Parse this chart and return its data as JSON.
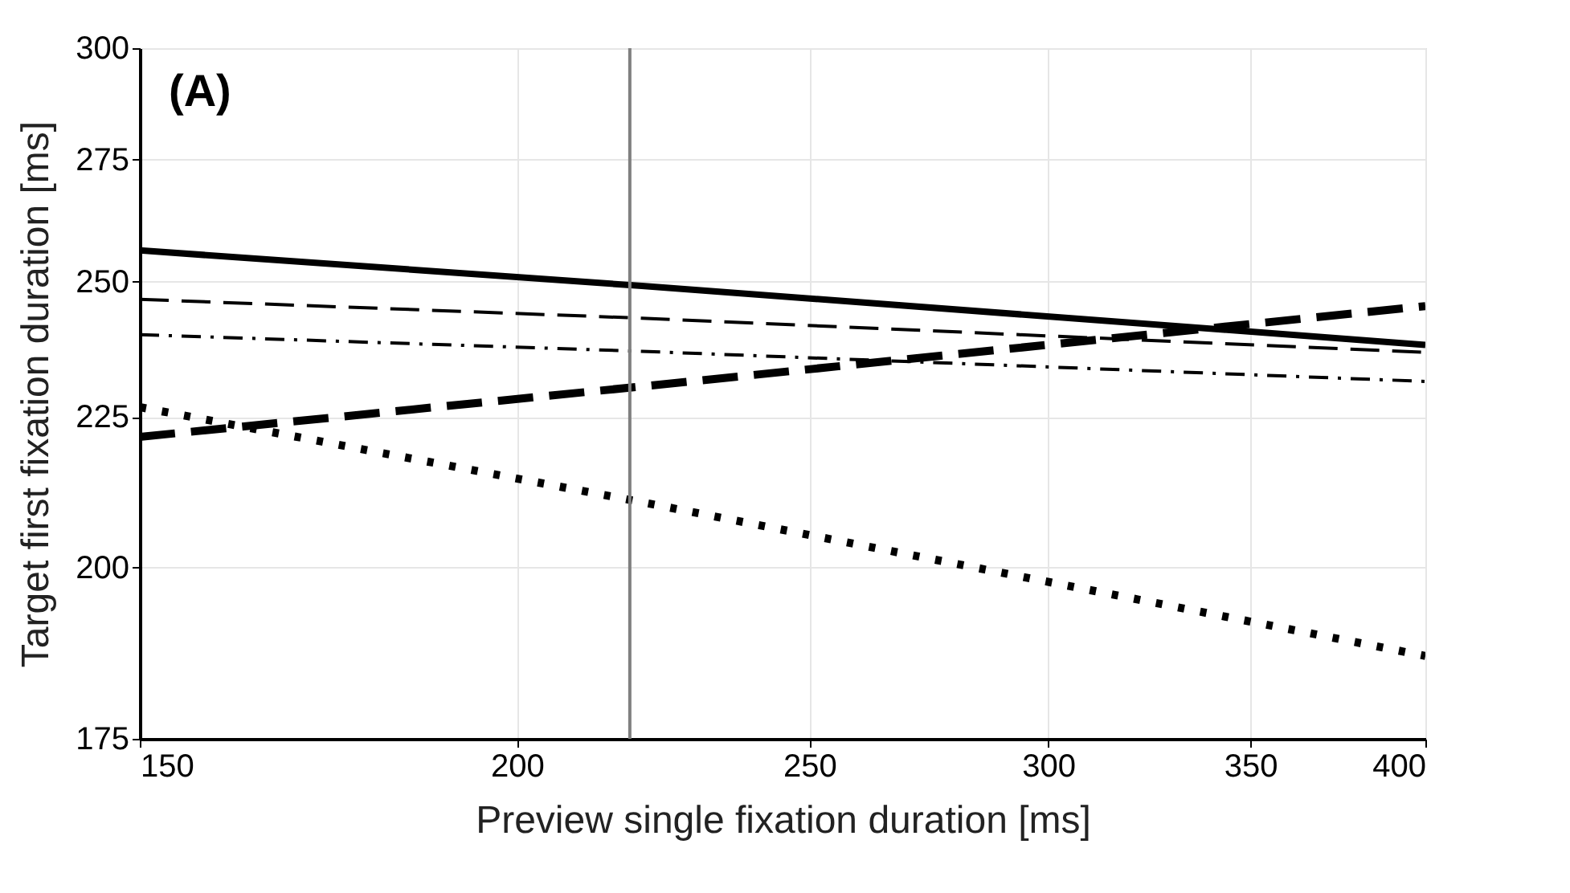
{
  "chart_data": {
    "type": "line",
    "xlabel": "Preview single fixation duration [ms]",
    "ylabel": "Target first fixation duration [ms]",
    "log": "xy",
    "xlim": [
      150,
      400
    ],
    "xticks": [
      150,
      200,
      250,
      300,
      350,
      400
    ],
    "ylim": [
      175,
      300
    ],
    "yticks": [
      175,
      200,
      225,
      250,
      275,
      300
    ],
    "grid": true,
    "marker": "none",
    "x": [
      150,
      220,
      400
    ],
    "series": [
      {
        "color": "#000000",
        "line_style": "solid",
        "values": [
          256.2,
          249.2,
          238.0
        ]
      },
      {
        "color": "#000000",
        "line_style": "dashed",
        "values": [
          246.6,
          243.0,
          236.6
        ]
      },
      {
        "color": "#000000",
        "line_style": "dashdot",
        "values": [
          239.9,
          236.8,
          231.3
        ]
      },
      {
        "color": "#000000",
        "line_style": "longdash",
        "values": [
          221.5,
          230.4,
          245.3
        ]
      },
      {
        "color": "#000000",
        "line_style": "dotted",
        "values": [
          226.7,
          210.5,
          186.7
        ]
      }
    ],
    "ref_lines": [
      {
        "axis": "x",
        "value": 218,
        "color": "#808080"
      }
    ],
    "annotations": [
      "(A)"
    ]
  }
}
